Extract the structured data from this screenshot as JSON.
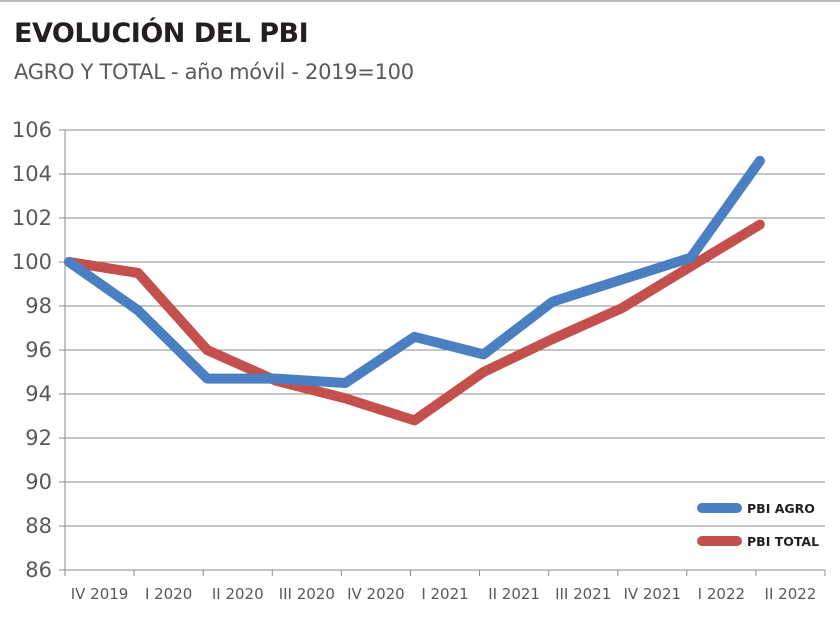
{
  "title": "EVOLUCIÓN DEL PBI",
  "subtitle": "AGRO Y TOTAL - año móvil - 2019=100",
  "colors": {
    "agro": "#4a80c2",
    "total": "#c4504e",
    "grid": "#8a8c8e",
    "text": "#58595b"
  },
  "chart_data": {
    "type": "line",
    "title": "EVOLUCIÓN DEL PBI",
    "subtitle": "AGRO Y TOTAL - año móvil - 2019=100",
    "xlabel": "",
    "ylabel": "",
    "categories": [
      "IV 2019",
      "I 2020",
      "II 2020",
      "III 2020",
      "IV 2020",
      "I 2021",
      "II 2021",
      "III 2021",
      "IV 2021",
      "I 2022",
      "II 2022"
    ],
    "ylim": [
      86,
      106
    ],
    "yticks": [
      86,
      88,
      90,
      92,
      94,
      96,
      98,
      100,
      102,
      104,
      106
    ],
    "grid": true,
    "legend_position": "bottom-right",
    "series": [
      {
        "name": "PBI AGRO",
        "color": "#4a80c2",
        "values": [
          100,
          97.8,
          94.7,
          94.7,
          94.5,
          96.6,
          95.8,
          98.2,
          99.2,
          100.2,
          104.6
        ]
      },
      {
        "name": "PBI TOTAL",
        "color": "#c4504e",
        "values": [
          100,
          99.5,
          96.0,
          94.6,
          93.8,
          92.8,
          95.0,
          96.5,
          97.9,
          99.8,
          101.7
        ]
      }
    ]
  }
}
